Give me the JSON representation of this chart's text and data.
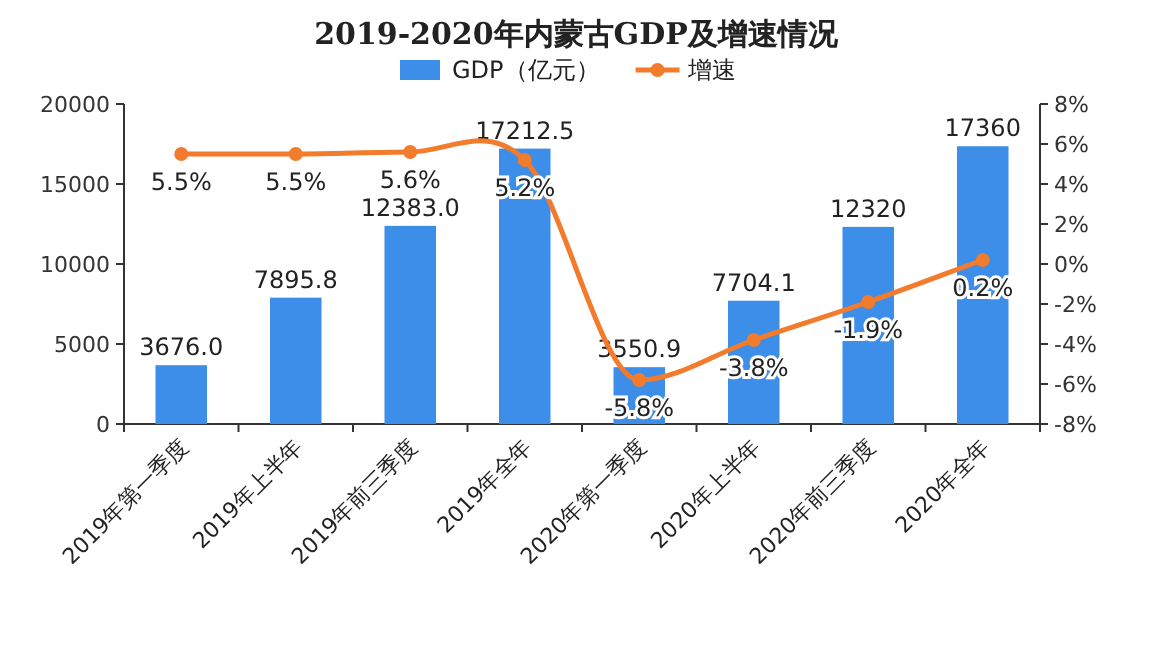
{
  "chart_data": {
    "type": "bar",
    "title": "2019-2020年内蒙古GDP及增速情况",
    "categories": [
      "2019年第一季度",
      "2019年上半年",
      "2019年前三季度",
      "2019年全年",
      "2020年第一季度",
      "2020年上半年",
      "2020年前三季度",
      "2020年全年"
    ],
    "series": [
      {
        "name": "GDP（亿元）",
        "color": "#3d8ee8",
        "values": [
          3676.0,
          7895.8,
          12383.0,
          17212.5,
          3550.9,
          7704.1,
          12320,
          17360
        ],
        "value_labels": [
          "3676.0",
          "7895.8",
          "12383.0",
          "17212.5",
          "3550.9",
          "7704.1",
          "12320",
          "17360"
        ]
      },
      {
        "name": "增速",
        "type": "line",
        "axis": "y2",
        "color": "#f27b2c",
        "values": [
          5.5,
          5.5,
          5.6,
          5.2,
          -5.8,
          -3.8,
          -1.9,
          0.2
        ],
        "value_labels": [
          "5.5%",
          "5.5%",
          "5.6%",
          "5.2%",
          "-5.8%",
          "-3.8%",
          "-1.9%",
          "0.2%"
        ]
      }
    ],
    "ylim": [
      0,
      20000
    ],
    "yticks": [
      0,
      5000,
      10000,
      15000,
      20000
    ],
    "y2lim": [
      -8,
      8
    ],
    "y2ticks": [
      {
        "value": -8,
        "label": "-8%"
      },
      {
        "value": -6,
        "label": "-6%"
      },
      {
        "value": -4,
        "label": "-4%"
      },
      {
        "value": -2,
        "label": "-2%"
      },
      {
        "value": 0,
        "label": "0%"
      },
      {
        "value": 2,
        "label": "2%"
      },
      {
        "value": 4,
        "label": "4%"
      },
      {
        "value": 6,
        "label": "6%"
      },
      {
        "value": 8,
        "label": "8%"
      }
    ],
    "marker": "circle",
    "legend": "top"
  }
}
